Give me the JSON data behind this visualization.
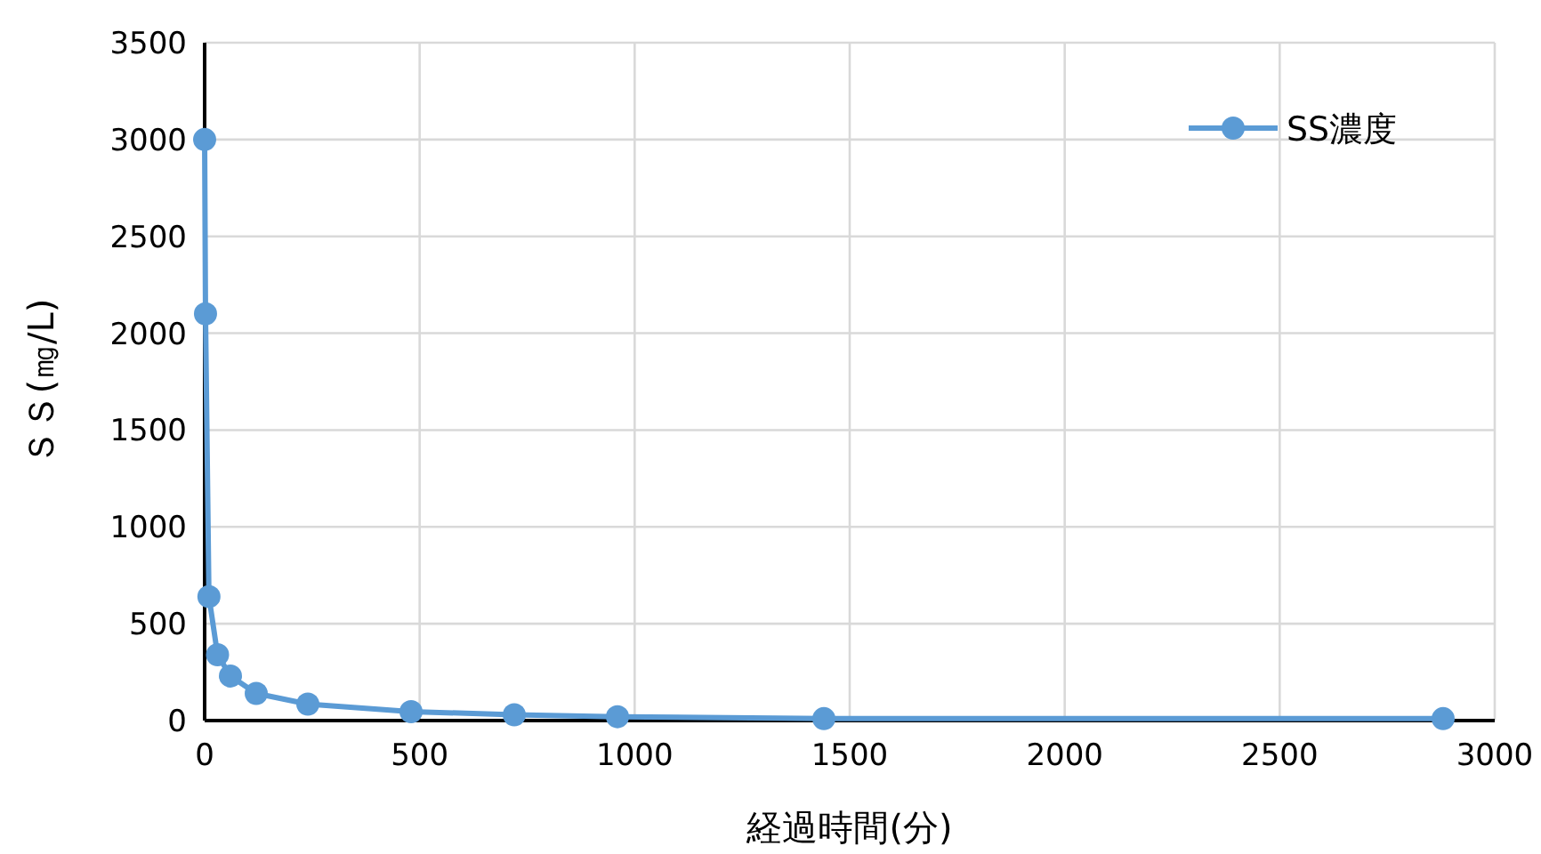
{
  "chart_data": {
    "type": "line",
    "xlabel": "経過時間(分)",
    "ylabel": "ＳＳ(㎎/L)",
    "xlim": [
      0,
      3000
    ],
    "xticks": [
      0,
      500,
      1000,
      1500,
      2000,
      2500,
      3000
    ],
    "ylim": [
      0,
      3500
    ],
    "yticks": [
      0,
      500,
      1000,
      1500,
      2000,
      2500,
      3000,
      3500
    ],
    "grid": true,
    "legend": "top right",
    "marker": "circle",
    "line_style": "solid",
    "series": [
      {
        "name": "SS濃度",
        "color": "#5b9bd5",
        "x": [
          0,
          2,
          10,
          30,
          60,
          120,
          240,
          480,
          720,
          960,
          1440,
          2880
        ],
        "values": [
          3000,
          2100,
          640,
          340,
          230,
          140,
          85,
          46,
          30,
          20,
          10,
          10
        ]
      }
    ]
  }
}
